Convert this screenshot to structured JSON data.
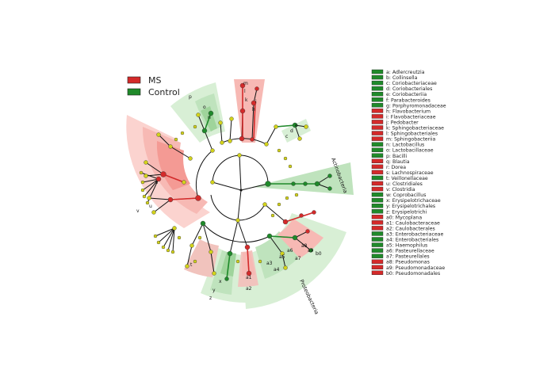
{
  "legend": {
    "groups": [
      {
        "label": "MS",
        "color": "#d42a2a"
      },
      {
        "label": "Control",
        "color": "#1f8a2a"
      }
    ]
  },
  "colors": {
    "red": "#d42a2a",
    "red_light": "#f7b9b4",
    "red_lighter": "#fbd3cf",
    "green": "#1f8a2a",
    "green_light": "#bfe3bd",
    "green_lighter": "#d8efd5",
    "node_gray": "#d2d21a",
    "branch": "#111111"
  },
  "taxa": [
    {
      "key": "a",
      "name": "Adlercreutzia",
      "group": "Control"
    },
    {
      "key": "b",
      "name": "Collinsella",
      "group": "Control"
    },
    {
      "key": "c",
      "name": "Coriobacteriaceae",
      "group": "Control"
    },
    {
      "key": "d",
      "name": "Coriobacteriales",
      "group": "Control"
    },
    {
      "key": "e",
      "name": "Coriobacteriia",
      "group": "Control"
    },
    {
      "key": "f",
      "name": "Parabacteroides",
      "group": "Control"
    },
    {
      "key": "g",
      "name": "Porphyromonadaceae",
      "group": "Control"
    },
    {
      "key": "h",
      "name": "Flavobacterium",
      "group": "MS"
    },
    {
      "key": "i",
      "name": "Flavobacteriaceae",
      "group": "MS"
    },
    {
      "key": "j",
      "name": "Pedobacter",
      "group": "MS"
    },
    {
      "key": "k",
      "name": "Sphingobacteriaceae",
      "group": "MS"
    },
    {
      "key": "l",
      "name": "Sphingobacteriales",
      "group": "MS"
    },
    {
      "key": "m",
      "name": "Sphingobacteriia",
      "group": "MS"
    },
    {
      "key": "n",
      "name": "Lactobacillus",
      "group": "Control"
    },
    {
      "key": "o",
      "name": "Lactobacillaceae",
      "group": "Control"
    },
    {
      "key": "p",
      "name": "Bacilli",
      "group": "Control"
    },
    {
      "key": "q",
      "name": "Blautia",
      "group": "MS"
    },
    {
      "key": "r",
      "name": "Dorea",
      "group": "MS"
    },
    {
      "key": "s",
      "name": "Lachnospiraceae",
      "group": "MS"
    },
    {
      "key": "t",
      "name": "Veillonellaceae",
      "group": "Control"
    },
    {
      "key": "u",
      "name": "Clostridiales",
      "group": "MS"
    },
    {
      "key": "v",
      "name": "Clostridia",
      "group": "MS"
    },
    {
      "key": "w",
      "name": "Coprobacillus",
      "group": "Control"
    },
    {
      "key": "x",
      "name": "Erysipelotrichaceae",
      "group": "Control"
    },
    {
      "key": "y",
      "name": "Erysipelotrichales",
      "group": "Control"
    },
    {
      "key": "z",
      "name": "Erysipelotrichi",
      "group": "Control"
    },
    {
      "key": "a0",
      "name": "Mycoplana",
      "group": "MS"
    },
    {
      "key": "a1",
      "name": "Caulobacteraceae",
      "group": "MS"
    },
    {
      "key": "a2",
      "name": "Caulobacterales",
      "group": "MS"
    },
    {
      "key": "a3",
      "name": "Enterobacteriaceae",
      "group": "Control"
    },
    {
      "key": "a4",
      "name": "Enterobacteriales",
      "group": "Control"
    },
    {
      "key": "a5",
      "name": "Haemophilus",
      "group": "Control"
    },
    {
      "key": "a6",
      "name": "Pasteurellaceae",
      "group": "Control"
    },
    {
      "key": "a7",
      "name": "Pasteurellales",
      "group": "Control"
    },
    {
      "key": "a8",
      "name": "Pseudomonas",
      "group": "MS"
    },
    {
      "key": "a9",
      "name": "Pseudomonadaceae",
      "group": "MS"
    },
    {
      "key": "b0",
      "name": "Pseudomonadales",
      "group": "MS"
    }
  ],
  "phylum_labels": {
    "actinobacteria": "Actinobacteria",
    "proteobacteria": "Proteobacteria"
  },
  "sector_labels": {
    "p": "p",
    "o": "o",
    "n": "n",
    "e": "e",
    "d": "d",
    "c": "c",
    "m": "m",
    "l": "l",
    "k": "k",
    "i": "i",
    "h": "h",
    "s": "s",
    "v": "v",
    "u": "u",
    "t": "t",
    "a4": "a4",
    "a3": "a3",
    "a5": "a5",
    "a6": "a6",
    "a7": "a7",
    "a8": "a8",
    "a9": "a9",
    "b0": "b0",
    "a0": "a0",
    "a1": "a1",
    "a2": "a2",
    "x": "x",
    "y": "y",
    "z": "z"
  }
}
